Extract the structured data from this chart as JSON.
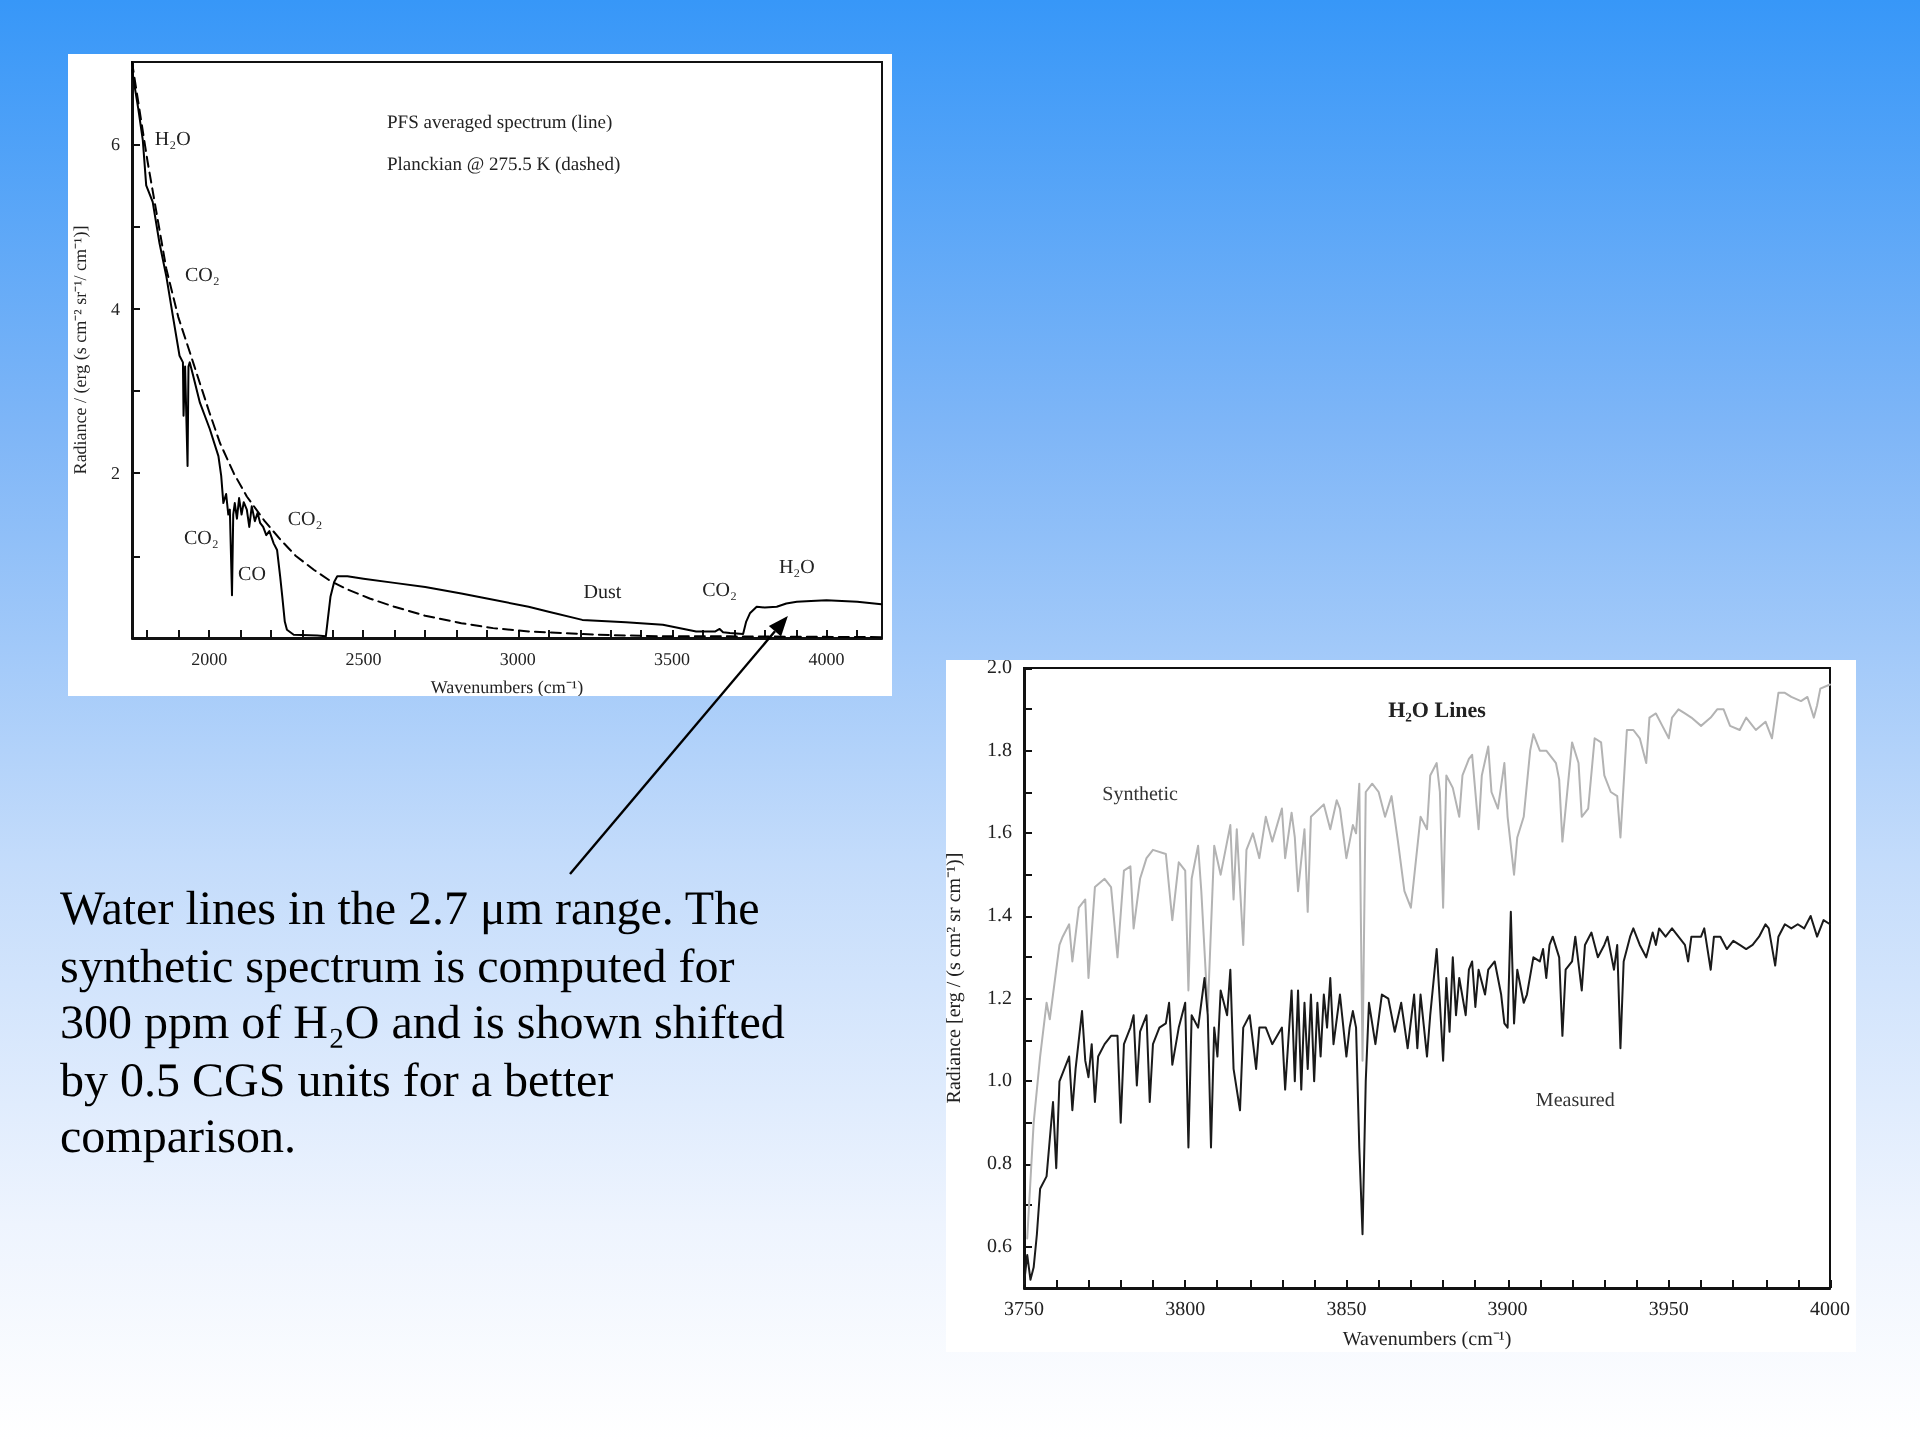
{
  "chart_data": [
    {
      "type": "line",
      "xlabel": "Wavenumbers (cm⁻¹)",
      "ylabel": "Radiance / (erg (s cm⁻² sr⁻¹/ cm⁻¹)]",
      "xlim": [
        1750,
        4180
      ],
      "xticks": [
        {
          "value": 1800,
          "label": null
        },
        {
          "value": 1900,
          "label": null
        },
        2000,
        {
          "value": 2100,
          "label": null
        },
        {
          "value": 2200,
          "label": null
        },
        {
          "value": 2300,
          "label": null
        },
        {
          "value": 2400,
          "label": null
        },
        2500,
        {
          "value": 2600,
          "label": null
        },
        {
          "value": 2700,
          "label": null
        },
        {
          "value": 2800,
          "label": null
        },
        {
          "value": 2900,
          "label": null
        },
        3000,
        {
          "value": 3100,
          "label": null
        },
        {
          "value": 3200,
          "label": null
        },
        {
          "value": 3300,
          "label": null
        },
        {
          "value": 3400,
          "label": null
        },
        3500,
        {
          "value": 3600,
          "label": null
        },
        {
          "value": 3700,
          "label": null
        },
        {
          "value": 3800,
          "label": null
        },
        {
          "value": 3900,
          "label": null
        },
        4000,
        {
          "value": 4100,
          "label": null
        }
      ],
      "ylim": [
        0,
        7
      ],
      "yticks": [
        {
          "value": 1,
          "label": null
        },
        2,
        {
          "value": 3,
          "label": null
        },
        4,
        {
          "value": 5,
          "label": null
        },
        6
      ],
      "series": [
        {
          "color": "#000000",
          "line_style": "solid",
          "x": [
            1750,
            1770,
            1785,
            1796,
            1817,
            1839,
            1861,
            1883,
            1904,
            1915,
            1917,
            1922,
            1930,
            1933,
            1937,
            1948,
            1970,
            2002,
            2030,
            2039,
            2046,
            2055,
            2062,
            2067,
            2074,
            2078,
            2083,
            2090,
            2097,
            2105,
            2112,
            2122,
            2130,
            2138,
            2148,
            2157,
            2165,
            2175,
            2185,
            2195,
            2209,
            2220,
            2230,
            2237,
            2245,
            2252,
            2274,
            2350,
            2378,
            2383,
            2393,
            2405,
            2415,
            2448,
            2500,
            2600,
            2700,
            2817,
            2900,
            3035,
            3100,
            3209,
            3350,
            3470,
            3578,
            3640,
            3654,
            3665,
            3687,
            3730,
            3740,
            3752,
            3774,
            3800,
            3839,
            3870,
            3904,
            3950,
            4000,
            4100,
            4178
          ],
          "values": [
            6.9,
            6.44,
            6.05,
            5.5,
            5.3,
            4.8,
            4.4,
            3.9,
            3.43,
            3.35,
            2.7,
            3.3,
            2.09,
            3.3,
            3.35,
            3.19,
            2.86,
            2.54,
            2.21,
            1.97,
            1.64,
            1.75,
            1.5,
            1.56,
            0.52,
            1.5,
            1.64,
            1.45,
            1.7,
            1.5,
            1.65,
            1.56,
            1.35,
            1.6,
            1.42,
            1.52,
            1.4,
            1.35,
            1.25,
            1.3,
            1.15,
            1.07,
            0.75,
            0.5,
            0.2,
            0.1,
            0.04,
            0.03,
            0.02,
            0.18,
            0.5,
            0.68,
            0.75,
            0.75,
            0.72,
            0.67,
            0.62,
            0.54,
            0.48,
            0.38,
            0.32,
            0.22,
            0.19,
            0.16,
            0.08,
            0.08,
            0.11,
            0.07,
            0.06,
            0.05,
            0.2,
            0.3,
            0.38,
            0.37,
            0.38,
            0.42,
            0.44,
            0.45,
            0.46,
            0.44,
            0.41
          ]
        },
        {
          "color": "#000000",
          "line_style": "dashed",
          "x": [
            1750,
            1800,
            1861,
            1900,
            1948,
            2000,
            2035,
            2080,
            2122,
            2180,
            2230,
            2280,
            2339,
            2390,
            2448,
            2520,
            2600,
            2700,
            2817,
            2920,
            3035,
            3252,
            3470,
            3687,
            4178
          ],
          "values": [
            7.0,
            5.8,
            4.49,
            3.9,
            3.35,
            2.75,
            2.37,
            2.0,
            1.72,
            1.42,
            1.2,
            1.0,
            0.83,
            0.7,
            0.59,
            0.48,
            0.38,
            0.27,
            0.18,
            0.12,
            0.08,
            0.04,
            0.02,
            0.02,
            0.01
          ]
        }
      ],
      "annotations": [
        "PFS averaged spectrum (line)",
        "Planckian @ 275.5 K (dashed)",
        {
          "text": "H₂O",
          "x": 1785,
          "y": 6.05
        },
        {
          "text": "CO₂",
          "x": 1861,
          "y": 4.4
        },
        {
          "text": "CO₂",
          "x": 2046,
          "y": 1.64
        },
        {
          "text": "CO",
          "x": 2074,
          "y": 0.52
        },
        {
          "text": "CO₂",
          "x": 2220,
          "y": 1.07
        },
        {
          "text": "Dust",
          "x": 3274,
          "y": 0.21
        },
        {
          "text": "CO₂",
          "x": 3654,
          "y": 0.11
        },
        {
          "text": "H₂O",
          "x": 3904,
          "y": 0.44
        }
      ]
    },
    {
      "type": "line",
      "title": "H₂O Lines",
      "xlabel": "Wavenumbers (cm⁻¹)",
      "ylabel": "Radiance [erg / (s cm² sr cm⁻¹)]",
      "xlim": [
        3750,
        4000
      ],
      "xticks": [
        3750,
        {
          "value": 3760,
          "label": null
        },
        {
          "value": 3770,
          "label": null
        },
        {
          "value": 3780,
          "label": null
        },
        {
          "value": 3790,
          "label": null
        },
        3800,
        {
          "value": 3810,
          "label": null
        },
        {
          "value": 3820,
          "label": null
        },
        {
          "value": 3830,
          "label": null
        },
        {
          "value": 3840,
          "label": null
        },
        3850,
        {
          "value": 3860,
          "label": null
        },
        {
          "value": 3870,
          "label": null
        },
        {
          "value": 3880,
          "label": null
        },
        {
          "value": 3890,
          "label": null
        },
        3900,
        {
          "value": 3910,
          "label": null
        },
        {
          "value": 3920,
          "label": null
        },
        {
          "value": 3930,
          "label": null
        },
        {
          "value": 3940,
          "label": null
        },
        3950,
        {
          "value": 3960,
          "label": null
        },
        {
          "value": 3970,
          "label": null
        },
        {
          "value": 3980,
          "label": null
        },
        {
          "value": 3990,
          "label": null
        },
        4000
      ],
      "ylim": [
        0.5,
        2.0
      ],
      "yticks": [
        0.6,
        {
          "value": 0.7,
          "label": null
        },
        0.8,
        {
          "value": 0.9,
          "label": null
        },
        {
          "value": 1,
          "label": "1.0"
        },
        {
          "value": 1.1,
          "label": null
        },
        1.2,
        {
          "value": 1.3,
          "label": null
        },
        1.4,
        {
          "value": 1.5,
          "label": null
        },
        1.6,
        {
          "value": 1.7,
          "label": null
        },
        1.8,
        {
          "value": 1.9,
          "label": null
        },
        {
          "value": 2,
          "label": "2.0"
        }
      ],
      "series": [
        {
          "name": "Synthetic",
          "color": "#b3b3b3",
          "x": [
            3751,
            3753,
            3755,
            3757,
            3758,
            3761,
            3762,
            3764,
            3765,
            3767,
            3769,
            3770,
            3772,
            3775,
            3777,
            3779,
            3781,
            3783,
            3784,
            3786,
            3788,
            3790,
            3794,
            3796,
            3798,
            3800,
            3801,
            3802,
            3804,
            3805,
            3807,
            3809,
            3811,
            3813,
            3814,
            3815,
            3816,
            3818,
            3819,
            3821,
            3823,
            3825,
            3827,
            3830,
            3831,
            3833,
            3834,
            3835,
            3837,
            3838,
            3839,
            3843,
            3845,
            3847,
            3848,
            3850,
            3852,
            3853,
            3854,
            3855,
            3856,
            3858,
            3860,
            3862,
            3864,
            3866,
            3868,
            3870,
            3873,
            3875,
            3876,
            3878,
            3879,
            3880,
            3881,
            3883,
            3885,
            3886,
            3888,
            3889,
            3891,
            3892,
            3894,
            3895,
            3897,
            3899,
            3900,
            3902,
            3903,
            3905,
            3907,
            3908,
            3910,
            3912,
            3914,
            3915,
            3916,
            3917,
            3919,
            3920,
            3922,
            3923,
            3925,
            3927,
            3929,
            3930,
            3932,
            3934,
            3935,
            3937,
            3939,
            3941,
            3943,
            3944,
            3946,
            3948,
            3950,
            3951,
            3953,
            3955,
            3957,
            3960,
            3963,
            3965,
            3967,
            3969,
            3972,
            3974,
            3976,
            3977,
            3980,
            3982,
            3984,
            3986,
            3988,
            3991,
            3993,
            3995,
            3996,
            3997,
            4000
          ],
          "values": [
            0.62,
            0.9,
            1.06,
            1.19,
            1.15,
            1.33,
            1.35,
            1.38,
            1.29,
            1.42,
            1.44,
            1.25,
            1.47,
            1.49,
            1.47,
            1.3,
            1.51,
            1.52,
            1.37,
            1.49,
            1.54,
            1.56,
            1.55,
            1.39,
            1.53,
            1.51,
            1.22,
            1.49,
            1.57,
            1.46,
            1.17,
            1.57,
            1.5,
            1.58,
            1.62,
            1.44,
            1.61,
            1.33,
            1.56,
            1.6,
            1.54,
            1.64,
            1.58,
            1.66,
            1.54,
            1.65,
            1.59,
            1.46,
            1.61,
            1.41,
            1.64,
            1.67,
            1.61,
            1.68,
            1.66,
            1.54,
            1.62,
            1.6,
            1.72,
            1.05,
            1.7,
            1.72,
            1.7,
            1.64,
            1.69,
            1.58,
            1.46,
            1.42,
            1.64,
            1.61,
            1.74,
            1.77,
            1.7,
            1.42,
            1.74,
            1.71,
            1.64,
            1.74,
            1.78,
            1.79,
            1.61,
            1.74,
            1.81,
            1.7,
            1.66,
            1.77,
            1.64,
            1.5,
            1.59,
            1.64,
            1.8,
            1.84,
            1.8,
            1.8,
            1.78,
            1.77,
            1.73,
            1.58,
            1.74,
            1.82,
            1.77,
            1.64,
            1.66,
            1.83,
            1.82,
            1.74,
            1.7,
            1.69,
            1.59,
            1.85,
            1.85,
            1.83,
            1.77,
            1.88,
            1.89,
            1.86,
            1.83,
            1.88,
            1.9,
            1.89,
            1.88,
            1.86,
            1.88,
            1.9,
            1.9,
            1.86,
            1.85,
            1.88,
            1.86,
            1.85,
            1.87,
            1.83,
            1.94,
            1.94,
            1.93,
            1.92,
            1.93,
            1.88,
            1.91,
            1.95,
            1.96
          ]
        },
        {
          "name": "Measured",
          "color": "#1a1a1a",
          "x": [
            3750,
            3751,
            3752,
            3753,
            3754,
            3755,
            3757,
            3759,
            3760,
            3761,
            3764,
            3765,
            3766,
            3768,
            3769,
            3770,
            3771,
            3772,
            3773,
            3775,
            3777,
            3779,
            3780,
            3781,
            3783,
            3784,
            3785,
            3786,
            3788,
            3789,
            3790,
            3792,
            3794,
            3795,
            3796,
            3798,
            3800,
            3801,
            3802,
            3804,
            3806,
            3807,
            3808,
            3809,
            3810,
            3811,
            3813,
            3814,
            3815,
            3817,
            3818,
            3820,
            3822,
            3823,
            3825,
            3827,
            3830,
            3831,
            3833,
            3834,
            3835,
            3836,
            3837,
            3838,
            3839,
            3840,
            3841,
            3842,
            3843,
            3844,
            3845,
            3846,
            3848,
            3850,
            3851,
            3852,
            3853,
            3854,
            3855,
            3856,
            3857,
            3859,
            3861,
            3863,
            3865,
            3867,
            3869,
            3871,
            3872,
            3873,
            3875,
            3876,
            3878,
            3879,
            3880,
            3881,
            3882,
            3883,
            3884,
            3885,
            3887,
            3888,
            3889,
            3890,
            3891,
            3893,
            3894,
            3896,
            3898,
            3899,
            3900,
            3901,
            3902,
            3903,
            3905,
            3906,
            3908,
            3910,
            3911,
            3912,
            3913,
            3914,
            3916,
            3917,
            3918,
            3920,
            3921,
            3923,
            3924,
            3926,
            3928,
            3930,
            3931,
            3933,
            3934,
            3935,
            3936,
            3938,
            3939,
            3941,
            3943,
            3945,
            3946,
            3947,
            3949,
            3951,
            3953,
            3955,
            3956,
            3957,
            3960,
            3961,
            3963,
            3964,
            3966,
            3968,
            3970,
            3972,
            3974,
            3976,
            3978,
            3980,
            3981,
            3983,
            3984,
            3986,
            3988,
            3990,
            3992,
            3994,
            3996,
            3998,
            4000
          ],
          "values": [
            0.51,
            0.58,
            0.52,
            0.55,
            0.63,
            0.74,
            0.77,
            0.95,
            0.79,
            1.0,
            1.06,
            0.93,
            1.03,
            1.17,
            1.05,
            1.01,
            1.09,
            0.95,
            1.06,
            1.09,
            1.11,
            1.11,
            0.9,
            1.09,
            1.13,
            1.16,
            0.99,
            1.12,
            1.16,
            0.95,
            1.09,
            1.13,
            1.14,
            1.19,
            1.04,
            1.13,
            1.19,
            0.84,
            1.16,
            1.13,
            1.25,
            1.16,
            0.84,
            1.13,
            1.06,
            1.22,
            1.16,
            1.27,
            1.03,
            0.93,
            1.13,
            1.16,
            1.03,
            1.13,
            1.13,
            1.09,
            1.13,
            0.98,
            1.22,
            1.0,
            1.22,
            0.98,
            1.19,
            1.03,
            1.21,
            1.0,
            1.19,
            1.06,
            1.21,
            1.13,
            1.25,
            1.09,
            1.21,
            1.06,
            1.13,
            1.17,
            1.13,
            0.84,
            0.63,
            1.0,
            1.19,
            1.09,
            1.21,
            1.2,
            1.12,
            1.19,
            1.08,
            1.21,
            1.08,
            1.21,
            1.06,
            1.16,
            1.32,
            1.19,
            1.05,
            1.25,
            1.12,
            1.3,
            1.16,
            1.25,
            1.16,
            1.27,
            1.29,
            1.18,
            1.27,
            1.21,
            1.27,
            1.29,
            1.21,
            1.14,
            1.13,
            1.41,
            1.14,
            1.27,
            1.19,
            1.21,
            1.3,
            1.29,
            1.32,
            1.25,
            1.33,
            1.35,
            1.3,
            1.11,
            1.27,
            1.29,
            1.35,
            1.22,
            1.33,
            1.36,
            1.3,
            1.33,
            1.35,
            1.27,
            1.33,
            1.08,
            1.29,
            1.35,
            1.37,
            1.33,
            1.3,
            1.36,
            1.33,
            1.37,
            1.35,
            1.37,
            1.35,
            1.33,
            1.29,
            1.35,
            1.35,
            1.37,
            1.27,
            1.35,
            1.35,
            1.32,
            1.34,
            1.33,
            1.32,
            1.33,
            1.35,
            1.38,
            1.37,
            1.28,
            1.35,
            1.38,
            1.37,
            1.38,
            1.37,
            1.4,
            1.35,
            1.39,
            1.38
          ]
        }
      ]
    },
    {
      "type": "other",
      "annotations": [
        "Water lines in the 2.7 μm range. The synthetic spectrum is computed for 300 ppm of H₂O and is shown shifted by 0.5 CGS units for a better comparison."
      ]
    }
  ]
}
